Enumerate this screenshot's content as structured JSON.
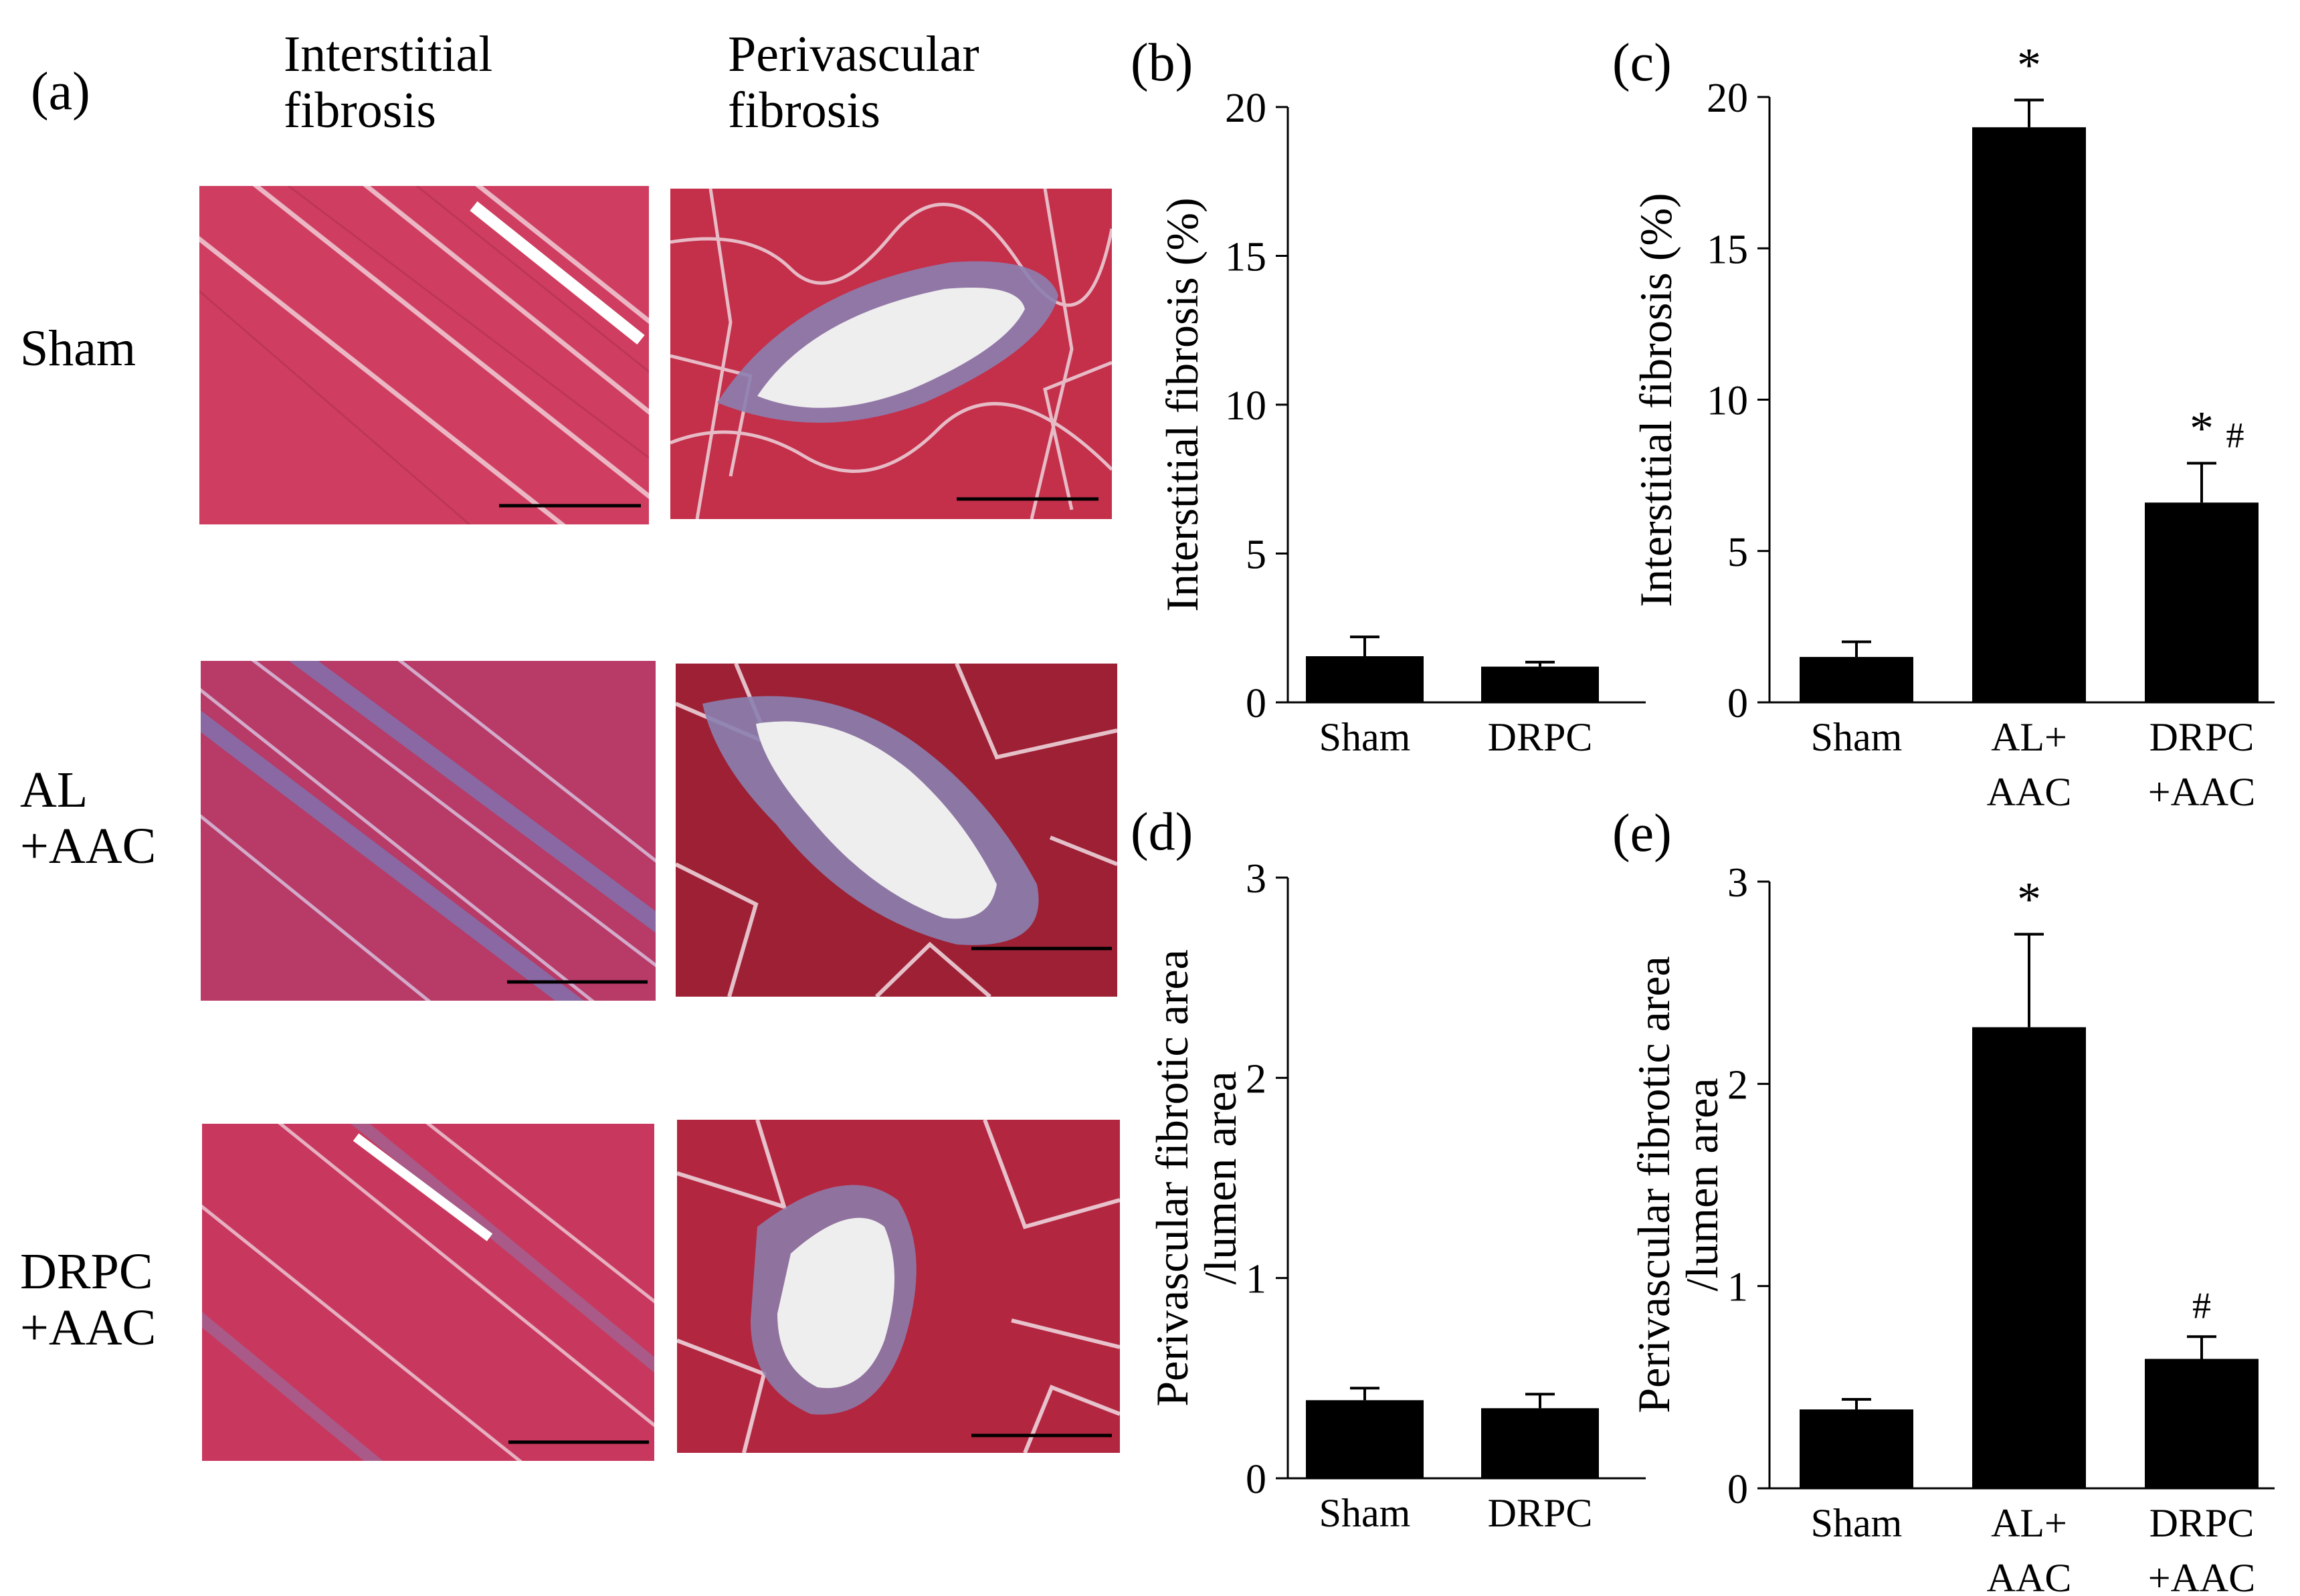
{
  "panel_a": {
    "letter": "(a)",
    "columns": [
      {
        "line1": "Interstitial",
        "line2": "fibrosis"
      },
      {
        "line1": "Perivascular",
        "line2": "fibrosis"
      }
    ],
    "rows": [
      {
        "line1": "Sham",
        "line2": ""
      },
      {
        "line1": "AL",
        "line2": "+AAC"
      },
      {
        "line1": "DRPC",
        "line2": "+AAC"
      }
    ],
    "colors": {
      "muscle": "#c8324f",
      "stain_blue": "#6e6aa8",
      "lumen": "#efeeee"
    }
  },
  "chart_data": [
    {
      "panel": "(b)",
      "type": "bar",
      "ylabel": "Interstitial  fibrosis (%)",
      "ylim": [
        0,
        20
      ],
      "yticks": [
        0,
        5,
        10,
        15,
        20
      ],
      "categories": [
        [
          "Sham"
        ],
        [
          "DRPC"
        ]
      ],
      "values": [
        1.55,
        1.2
      ],
      "errors": [
        0.65,
        0.15
      ],
      "annotations": [
        "",
        ""
      ]
    },
    {
      "panel": "(c)",
      "type": "bar",
      "ylabel": "Interstitial  fibrosis (%)",
      "ylim": [
        0,
        20
      ],
      "yticks": [
        0,
        5,
        10,
        15,
        20
      ],
      "categories": [
        [
          "Sham"
        ],
        [
          "AL+",
          "AAC"
        ],
        [
          "DRPC",
          "+AAC"
        ]
      ],
      "values": [
        1.5,
        19.0,
        6.6
      ],
      "errors": [
        0.5,
        0.9,
        1.3
      ],
      "annotations": [
        "",
        "*",
        "*#"
      ]
    },
    {
      "panel": "(d)",
      "type": "bar",
      "ylabel": "Perivascular  fibrotic area",
      "ylabel2": "/lumen area",
      "ylim": [
        0,
        3
      ],
      "yticks": [
        0,
        1,
        2,
        3
      ],
      "categories": [
        [
          "Sham"
        ],
        [
          "DRPC"
        ]
      ],
      "values": [
        0.39,
        0.35
      ],
      "errors": [
        0.06,
        0.07
      ],
      "annotations": [
        "",
        ""
      ]
    },
    {
      "panel": "(e)",
      "type": "bar",
      "ylabel": "Perivascular  fibrotic area",
      "ylabel2": "/lumen area",
      "ylim": [
        0,
        3
      ],
      "yticks": [
        0,
        1,
        2,
        3
      ],
      "categories": [
        [
          "Sham"
        ],
        [
          "AL+",
          "AAC"
        ],
        [
          "DRPC",
          "+AAC"
        ]
      ],
      "values": [
        0.39,
        2.28,
        0.64
      ],
      "errors": [
        0.05,
        0.46,
        0.11
      ],
      "annotations": [
        "",
        "*",
        "#"
      ]
    }
  ]
}
